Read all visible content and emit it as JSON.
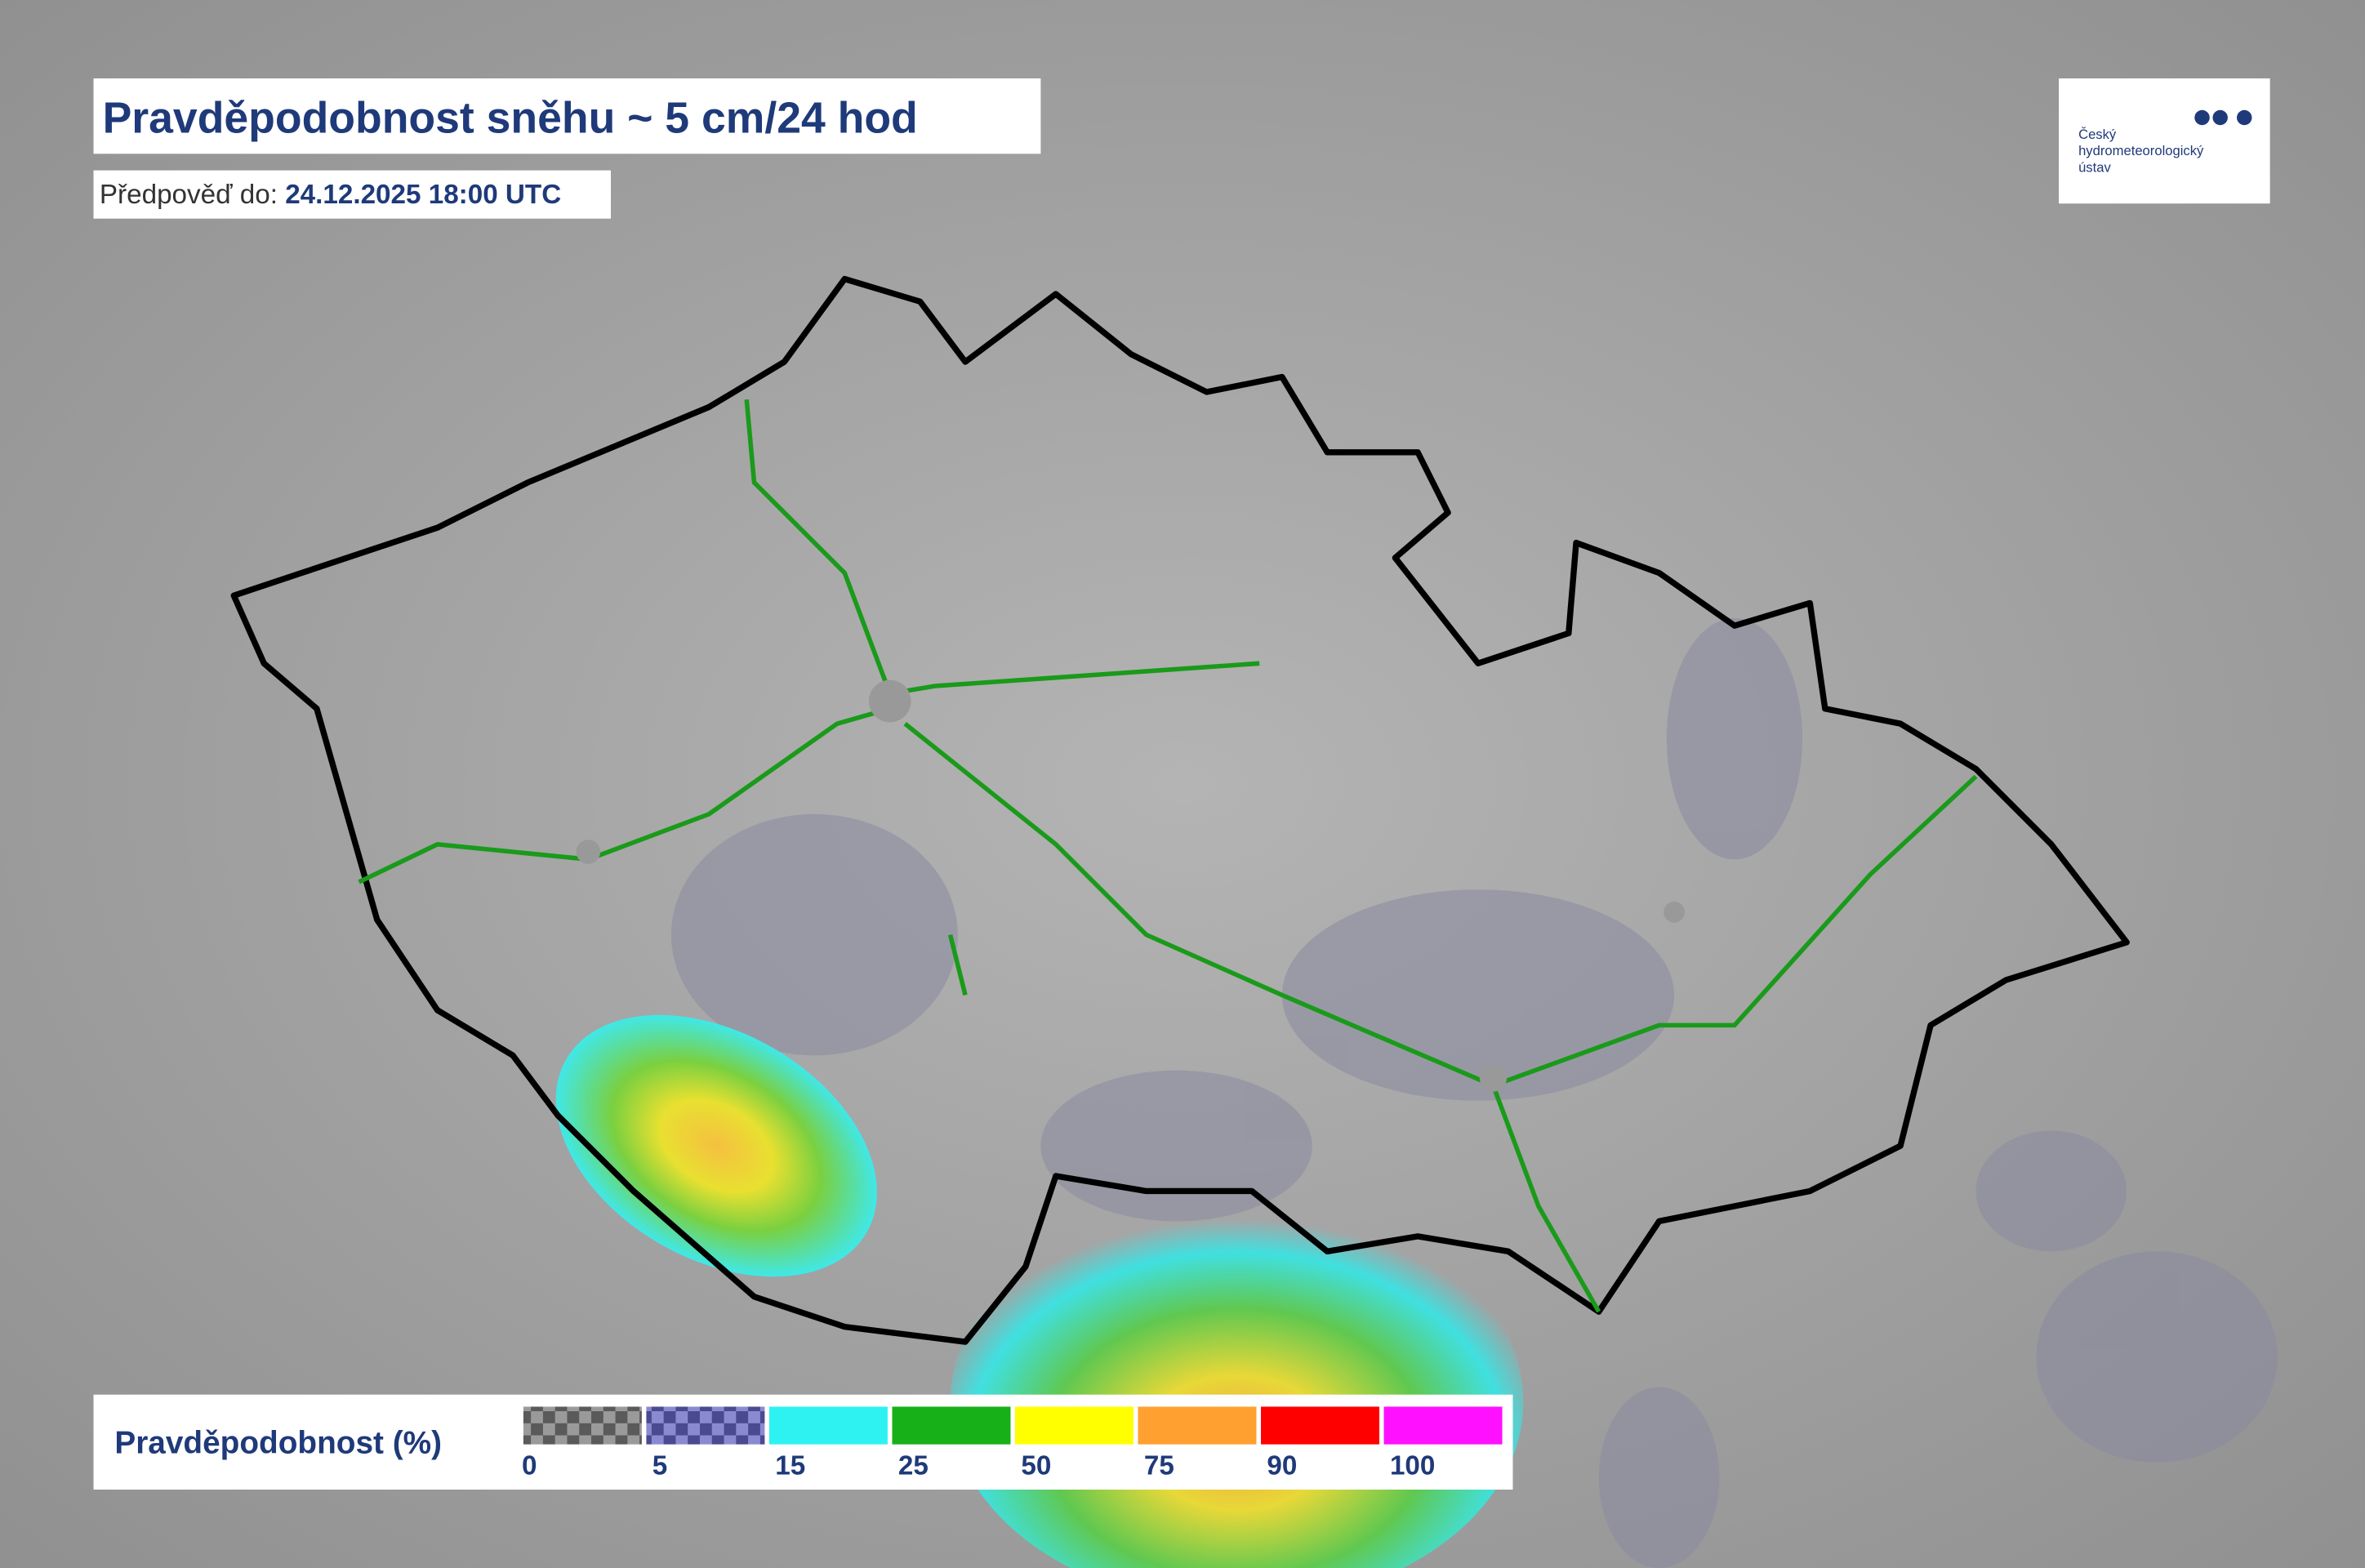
{
  "header": {
    "title": "Pravděpodobnost sněhu ~ 5 cm/24 hod",
    "forecast_label": "Předpověď do:",
    "forecast_time": "24.12.2025 18:00 UTC"
  },
  "logo": {
    "lines": [
      "Český",
      "hydrometeorologický",
      "ústav"
    ]
  },
  "legend": {
    "title": "Pravděpodobnost (%)",
    "bins": [
      {
        "color": "#5a5a5a",
        "pattern": "checker"
      },
      {
        "color": "#4a4a90",
        "pattern": "checker"
      },
      {
        "color": "#2ef2f2"
      },
      {
        "color": "#18b018"
      },
      {
        "color": "#ffff00"
      },
      {
        "color": "#ffa030"
      },
      {
        "color": "#ff0000"
      },
      {
        "color": "#ff10ff"
      }
    ],
    "ticks": [
      0,
      5,
      15,
      25,
      50,
      75,
      90,
      100
    ]
  }
}
